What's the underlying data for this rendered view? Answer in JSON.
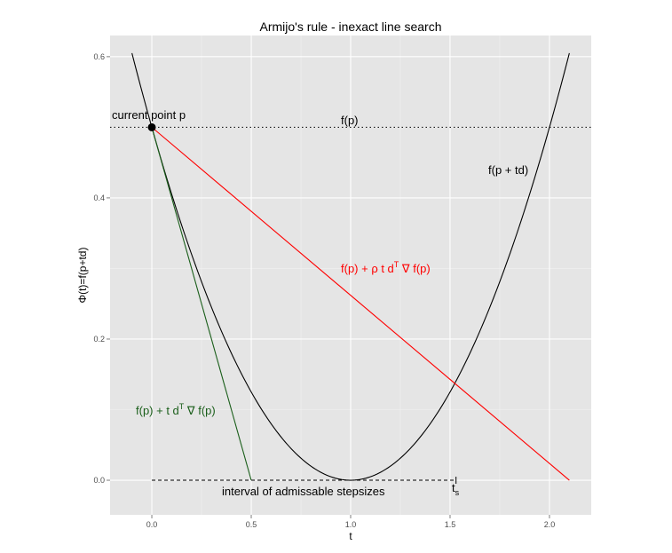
{
  "chart_data": {
    "type": "line",
    "title": "Armijo's rule - inexact line search",
    "xlabel": "t",
    "ylabel": "Φ(t)=f(p+td)",
    "xlim": [
      -0.21,
      2.21
    ],
    "ylim": [
      -0.049,
      0.63
    ],
    "x_ticks": [
      0.0,
      0.5,
      1.0,
      1.5,
      2.0
    ],
    "x_tick_labels": [
      "0.0",
      "0.5",
      "1.0",
      "1.5",
      "2.0"
    ],
    "y_ticks": [
      0.0,
      0.2,
      0.4,
      0.6
    ],
    "y_tick_labels": [
      "0.0",
      "0.2",
      "0.4",
      "0.6"
    ],
    "grid": true,
    "series": [
      {
        "name": "f(p+td)",
        "color": "#000000",
        "style": "solid",
        "function": "0.5*(t-1)^2",
        "x_range": [
          -0.1,
          2.1
        ]
      },
      {
        "name": "f(p) + ρ t dᵀ ∇ f(p)",
        "color": "#ff0000",
        "style": "solid",
        "x": [
          0.0,
          2.1
        ],
        "y": [
          0.5,
          0.0
        ]
      },
      {
        "name": "f(p) + t dᵀ ∇ f(p)",
        "color": "#1a5e1a",
        "style": "solid",
        "x": [
          0.0,
          0.5
        ],
        "y": [
          0.5,
          0.0
        ]
      },
      {
        "name": "f(p)",
        "color": "#000000",
        "style": "dotted",
        "y_const": 0.5
      },
      {
        "name": "interval of admissable stepsizes",
        "color": "#000000",
        "style": "dashed",
        "x": [
          0.0,
          1.53
        ],
        "y": [
          0.0,
          0.0
        ]
      }
    ],
    "points": [
      {
        "name": "current point p",
        "x": 0.0,
        "y": 0.5
      }
    ],
    "annotations": {
      "current_point": "current point p",
      "fp": {
        "a": "f",
        "b": "(p)"
      },
      "fptd": {
        "a": "f",
        "b": "(p + td)"
      },
      "red_label": {
        "a": "f",
        "b": "(p)",
        "c": " + ρ t d",
        "sup": "T",
        "d": " ∇ f",
        "e": "(p)",
        "color": "#ff0000"
      },
      "green_label": {
        "a": "f",
        "b": "(p)",
        "c": " + t d",
        "sup": "T",
        "d": " ∇ f",
        "e": "(p)",
        "color": "#1a5e1a"
      },
      "interval": "interval of admissable stepsizes",
      "ts": {
        "a": "t",
        "sub": "s"
      }
    }
  }
}
